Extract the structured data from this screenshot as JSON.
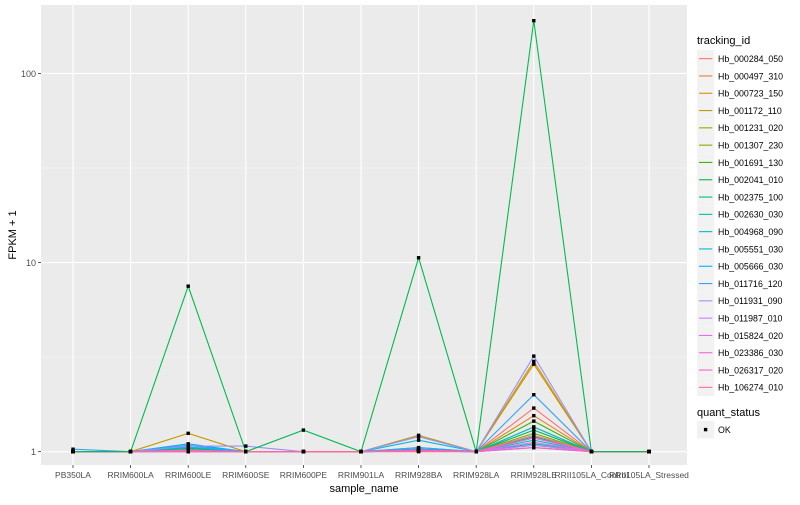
{
  "chart_data": {
    "type": "line",
    "xlabel": "sample_name",
    "ylabel": "FPKM + 1",
    "y_scale": "log",
    "ylim": [
      0.85,
      230
    ],
    "y_ticks": [
      1,
      10,
      100
    ],
    "y_tick_labels": [
      "1",
      "10",
      "100"
    ],
    "grid": true,
    "legend_position": "right",
    "categories": [
      "PB350LA",
      "RRIM600LA",
      "RRIM600LE",
      "RRIM600SE",
      "RRIM600PE",
      "RRIM901LA",
      "RRIM928BA",
      "RRIM928LA",
      "RRIM928LE",
      "RRII105LA_Control",
      "RRII105LA_Stressed"
    ],
    "legend": {
      "title": "tracking_id",
      "entries": [
        "Hb_000284_050",
        "Hb_000497_310",
        "Hb_000723_150",
        "Hb_001172_110",
        "Hb_001231_020",
        "Hb_001307_230",
        "Hb_001691_130",
        "Hb_002041_010",
        "Hb_002375_100",
        "Hb_002630_030",
        "Hb_004968_090",
        "Hb_005551_030",
        "Hb_005666_030",
        "Hb_011716_120",
        "Hb_011931_090",
        "Hb_011987_010",
        "Hb_015824_020",
        "Hb_023386_030",
        "Hb_026317_020",
        "Hb_106274_010"
      ]
    },
    "shape_legend": {
      "title": "quant_status",
      "entries": [
        "OK"
      ]
    },
    "series": [
      {
        "name": "Hb_000284_050",
        "color": "#F8766D",
        "values": [
          1.0,
          1.0,
          1.05,
          1.0,
          1.0,
          1.0,
          1.03,
          1.0,
          1.7,
          1.0,
          1.0
        ]
      },
      {
        "name": "Hb_000497_310",
        "color": "#EA8331",
        "values": [
          1.0,
          1.0,
          1.03,
          1.0,
          1.0,
          1.0,
          1.02,
          1.0,
          1.55,
          1.0,
          1.0
        ]
      },
      {
        "name": "Hb_000723_150",
        "color": "#D89000",
        "values": [
          1.0,
          1.0,
          1.08,
          1.0,
          1.0,
          1.0,
          1.05,
          1.0,
          3.0,
          1.0,
          1.0
        ]
      },
      {
        "name": "Hb_001172_110",
        "color": "#C09B00",
        "values": [
          1.0,
          1.0,
          1.25,
          1.0,
          1.0,
          1.0,
          1.22,
          1.0,
          2.9,
          1.0,
          1.0
        ]
      },
      {
        "name": "Hb_001231_020",
        "color": "#A3A500",
        "values": [
          1.0,
          1.0,
          1.02,
          1.0,
          1.0,
          1.0,
          1.01,
          1.0,
          1.35,
          1.0,
          1.0
        ]
      },
      {
        "name": "Hb_001307_230",
        "color": "#7CAE00",
        "values": [
          1.0,
          1.0,
          1.01,
          1.0,
          1.0,
          1.0,
          1.01,
          1.0,
          1.25,
          1.0,
          1.0
        ]
      },
      {
        "name": "Hb_001691_130",
        "color": "#39B600",
        "values": [
          1.0,
          1.0,
          1.02,
          1.0,
          1.0,
          1.0,
          1.02,
          1.0,
          1.45,
          1.0,
          1.0
        ]
      },
      {
        "name": "Hb_002041_010",
        "color": "#00BB4E",
        "values": [
          1.0,
          1.0,
          1.04,
          1.0,
          1.0,
          1.0,
          1.03,
          1.0,
          1.3,
          1.0,
          1.0
        ]
      },
      {
        "name": "Hb_002375_100",
        "color": "#00BF7D",
        "values": [
          1.0,
          1.0,
          1.03,
          1.0,
          1.0,
          1.0,
          1.02,
          1.0,
          1.2,
          1.0,
          1.0
        ]
      },
      {
        "name": "Hb_002630_030",
        "color": "#00C1A3",
        "values": [
          1.0,
          1.0,
          1.01,
          1.0,
          1.0,
          1.0,
          1.01,
          1.0,
          1.1,
          1.0,
          1.0
        ]
      },
      {
        "name": "Hb_004968_090",
        "color": "#00BFC4",
        "values": [
          1.0,
          1.0,
          1.02,
          1.0,
          1.0,
          1.0,
          1.02,
          1.0,
          1.15,
          1.0,
          1.0
        ]
      },
      {
        "name": "Hb_005551_030",
        "color": "#00BAE0",
        "values": [
          1.0,
          1.0,
          1.06,
          1.0,
          1.0,
          1.0,
          1.15,
          1.0,
          1.35,
          1.0,
          1.0
        ]
      },
      {
        "name": "Hb_005666_030",
        "color": "#00B0F6",
        "values": [
          1.0,
          1.0,
          1.1,
          1.0,
          1.0,
          1.0,
          1.03,
          1.0,
          1.05,
          1.0,
          1.0
        ]
      },
      {
        "name": "Hb_011716_120",
        "color": "#35A2FF",
        "values": [
          1.03,
          1.0,
          1.08,
          1.0,
          1.0,
          1.0,
          1.05,
          1.0,
          2.0,
          1.0,
          1.0
        ]
      },
      {
        "name": "Hb_011931_090",
        "color": "#9590FF",
        "values": [
          1.0,
          1.0,
          1.07,
          1.07,
          1.0,
          1.0,
          1.2,
          1.0,
          3.2,
          1.0,
          1.0
        ]
      },
      {
        "name": "Hb_011987_010",
        "color": "#C77CFF",
        "values": [
          1.0,
          1.0,
          1.02,
          1.0,
          1.0,
          1.0,
          1.01,
          1.0,
          1.08,
          1.0,
          1.0
        ]
      },
      {
        "name": "Hb_015824_020",
        "color": "#E76BF3",
        "values": [
          1.0,
          1.0,
          1.0,
          1.0,
          1.0,
          1.0,
          1.01,
          1.0,
          1.12,
          1.0,
          1.0
        ]
      },
      {
        "name": "Hb_023386_030",
        "color": "#FA62DB",
        "values": [
          1.0,
          1.0,
          1.01,
          1.0,
          1.0,
          1.0,
          1.02,
          1.0,
          1.18,
          1.0,
          1.0
        ]
      },
      {
        "name": "Hb_026317_020",
        "color": "#FF62BC",
        "values": [
          1.0,
          1.0,
          1.0,
          1.0,
          1.0,
          1.0,
          1.01,
          1.0,
          1.05,
          1.0,
          1.0
        ]
      },
      {
        "name": "Hb_106274_010",
        "color": "#FF6C91",
        "values": [
          1.0,
          1.0,
          1.0,
          1.0,
          1.0,
          1.0,
          1.0,
          1.0,
          1.22,
          1.0,
          1.0
        ]
      },
      {
        "name": "Hb_002041_010",
        "color": "#00BB4E",
        "values": [
          1.0,
          1.0,
          7.5,
          1.0,
          1.3,
          1.0,
          10.6,
          1.0,
          190,
          1.0,
          1.0
        ]
      }
    ]
  }
}
